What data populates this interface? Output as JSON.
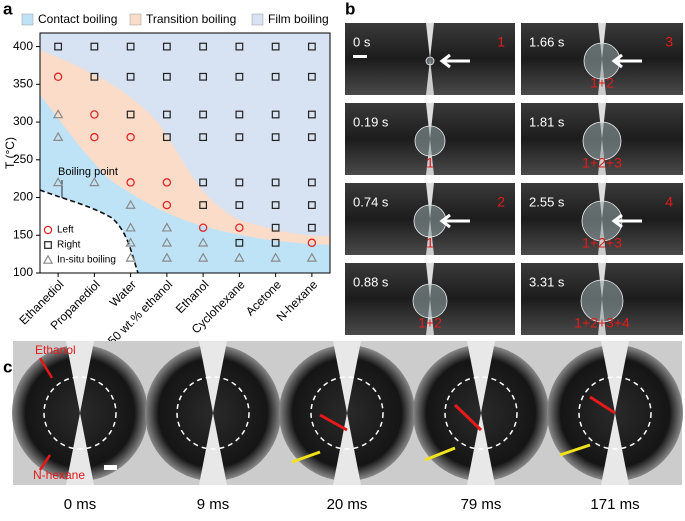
{
  "chart_data": {
    "type": "scatter",
    "panel_label": "a",
    "ylabel": "T (°C)",
    "categories": [
      "Ethanediol",
      "Propanediol",
      "Water",
      "50 wt.% ethanol",
      "Ethanol",
      "Cyclohexane",
      "Acetone",
      "N-hexane"
    ],
    "ylim": [
      100,
      418
    ],
    "yticks": [
      100,
      150,
      200,
      250,
      300,
      350,
      400
    ],
    "regions": [
      {
        "name": "Contact boiling",
        "color": "#bfe3f6"
      },
      {
        "name": "Transition boiling",
        "color": "#fbdcc8"
      },
      {
        "name": "Film boiling",
        "color": "#d7e2f2"
      }
    ],
    "annotation": "Boiling point",
    "series": [
      {
        "name": "Left",
        "color": "#e0282a",
        "marker": "circle",
        "x": [
          "Ethanediol",
          "Propanediol",
          "Propanediol",
          "Water",
          "Water",
          "50 wt.% ethanol",
          "50 wt.% ethanol",
          "Ethanol",
          "Cyclohexane",
          "N-hexane"
        ],
        "y": [
          360,
          310,
          280,
          280,
          220,
          220,
          190,
          160,
          160,
          140
        ]
      },
      {
        "name": "Right",
        "color": "#222222",
        "marker": "square",
        "x": [
          "Ethanediol",
          "Propanediol",
          "Propanediol",
          "Water",
          "Water",
          "Water",
          "50 wt.% ethanol",
          "50 wt.% ethanol",
          "50 wt.% ethanol",
          "50 wt.% ethanol",
          "Ethanol",
          "Ethanol",
          "Ethanol",
          "Ethanol",
          "Ethanol",
          "Ethanol",
          "Cyclohexane",
          "Cyclohexane",
          "Cyclohexane",
          "Cyclohexane",
          "Cyclohexane",
          "Cyclohexane",
          "Cyclohexane",
          "Acetone",
          "Acetone",
          "Acetone",
          "Acetone",
          "Acetone",
          "Acetone",
          "Acetone",
          "Acetone",
          "N-hexane",
          "N-hexane",
          "N-hexane",
          "N-hexane",
          "N-hexane",
          "N-hexane",
          "N-hexane"
        ],
        "y": [
          400,
          400,
          360,
          400,
          360,
          310,
          400,
          360,
          310,
          280,
          400,
          360,
          310,
          280,
          220,
          190,
          400,
          360,
          310,
          280,
          220,
          190,
          140,
          400,
          360,
          310,
          280,
          220,
          190,
          160,
          140,
          400,
          360,
          310,
          280,
          220,
          190,
          160
        ]
      },
      {
        "name": "In-situ boiling",
        "color": "#8a8a8a",
        "marker": "triangle",
        "x": [
          "Ethanediol",
          "Ethanediol",
          "Ethanediol",
          "Propanediol",
          "Water",
          "Water",
          "Water",
          "Water",
          "50 wt.% ethanol",
          "50 wt.% ethanol",
          "50 wt.% ethanol",
          "Ethanol",
          "Ethanol",
          "Cyclohexane",
          "Acetone",
          "N-hexane"
        ],
        "y": [
          310,
          280,
          220,
          220,
          190,
          160,
          140,
          120,
          160,
          140,
          120,
          140,
          120,
          120,
          120,
          120
        ]
      }
    ]
  },
  "panel_b": {
    "label": "b",
    "frames": [
      {
        "time": "0 s",
        "right": "1"
      },
      {
        "time": "0.19 s",
        "bottom": "1"
      },
      {
        "time": "0.74 s",
        "right": "2",
        "bottom": "1"
      },
      {
        "time": "0.88 s",
        "bottom": "1+2"
      },
      {
        "time": "1.66 s",
        "right": "3",
        "bottom": "1+2"
      },
      {
        "time": "1.81 s",
        "bottom": "1+2+3"
      },
      {
        "time": "2.55 s",
        "right": "4",
        "bottom": "1+2+3"
      },
      {
        "time": "3.31 s",
        "bottom": "1+2+3+4"
      }
    ]
  },
  "panel_c": {
    "label": "c",
    "annotations": [
      "Ethanol",
      "N-hexane"
    ],
    "frames": [
      "0 ms",
      "9 ms",
      "20 ms",
      "79 ms",
      "171 ms"
    ]
  }
}
